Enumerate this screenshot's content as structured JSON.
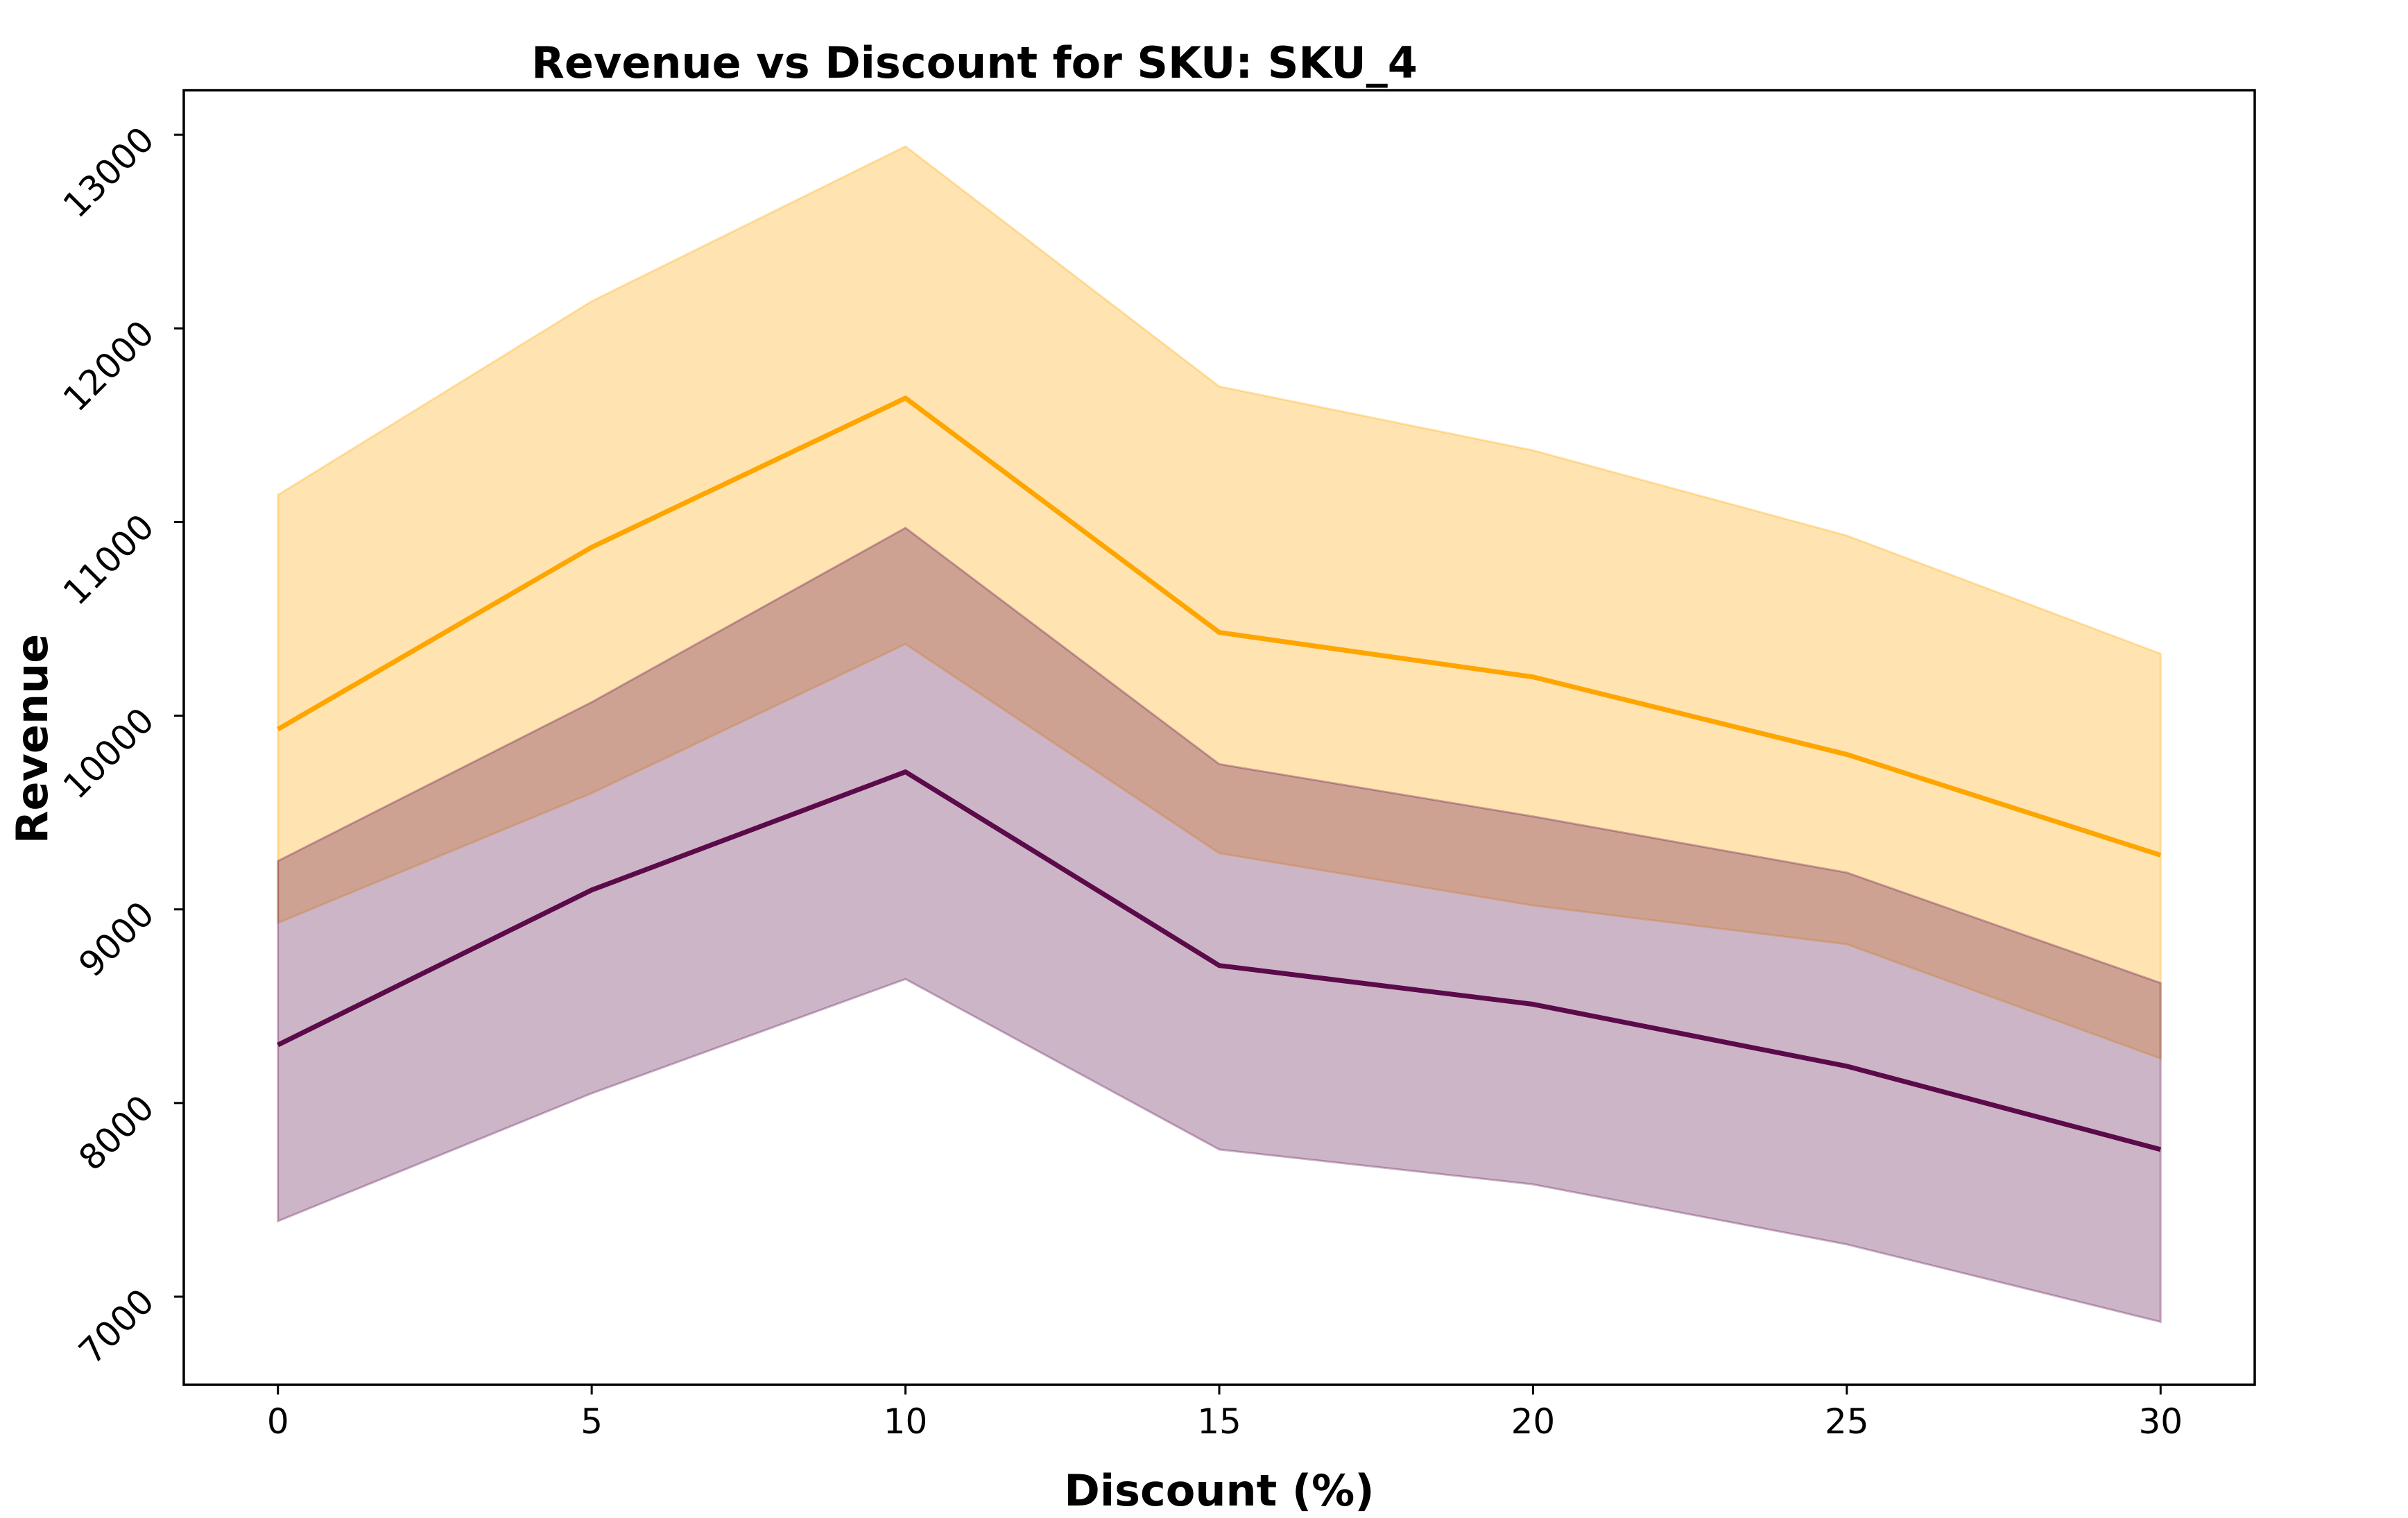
{
  "chart_data": {
    "type": "area",
    "title": "Revenue vs Discount for SKU: SKU_4",
    "xlabel": "Discount (%)",
    "ylabel": "Revenue",
    "x": [
      0,
      5,
      10,
      15,
      20,
      25,
      30
    ],
    "xticks": [
      0,
      5,
      10,
      15,
      20,
      25,
      30
    ],
    "yticks": [
      7000,
      8000,
      9000,
      10000,
      11000,
      12000,
      13000
    ],
    "xlim": [
      -1.5,
      31.5
    ],
    "ylim": [
      6545,
      13230
    ],
    "grid": false,
    "series": [
      {
        "color": "#ffa500",
        "line": [
          9930,
          10870,
          11640,
          10430,
          10200,
          9800,
          9280
        ],
        "upper": [
          11140,
          12140,
          12940,
          11700,
          11370,
          10930,
          10320
        ],
        "lower": [
          8930,
          9600,
          10370,
          9290,
          9020,
          8820,
          8230
        ]
      },
      {
        "color": "#5b0a4a",
        "line": [
          8300,
          9100,
          9710,
          8710,
          8510,
          8190,
          7760
        ],
        "upper": [
          9250,
          10070,
          10970,
          9750,
          9480,
          9190,
          8620
        ],
        "lower": [
          7390,
          8050,
          8640,
          7760,
          7580,
          7270,
          6870
        ]
      }
    ]
  }
}
